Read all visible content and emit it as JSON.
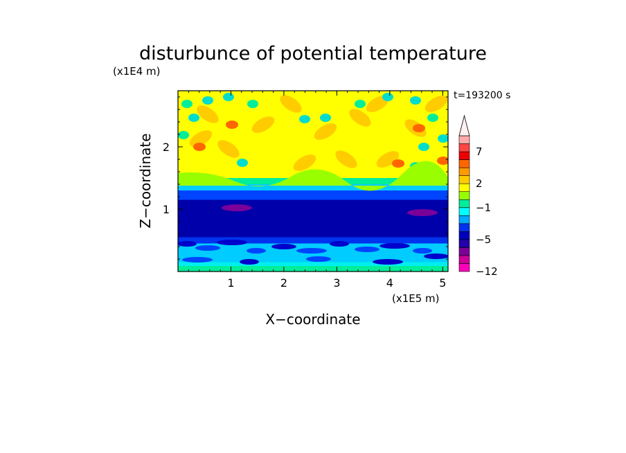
{
  "chart_data": {
    "type": "heatmap",
    "title": "disturbunce of potential temperature",
    "time_label": "t=193200 s",
    "xlabel": "X−coordinate",
    "ylabel": "Z−coordinate",
    "x_unit": "(x1E5 m)",
    "y_unit": "(x1E4 m)",
    "xlim": [
      0,
      5.1
    ],
    "ylim": [
      0,
      2.9
    ],
    "x_ticks": [
      {
        "value": 1,
        "label": "1"
      },
      {
        "value": 2,
        "label": "2"
      },
      {
        "value": 3,
        "label": "3"
      },
      {
        "value": 4,
        "label": "4"
      },
      {
        "value": 5,
        "label": "5"
      }
    ],
    "y_ticks": [
      {
        "value": 1,
        "label": "1"
      },
      {
        "value": 2,
        "label": "2"
      }
    ],
    "colorbar": {
      "extend": "max",
      "colors": [
        "#ff00bb",
        "#cc0099",
        "#7a0099",
        "#2200aa",
        "#0000bb",
        "#0033ee",
        "#00aaff",
        "#00ffff",
        "#00ee99",
        "#99ff00",
        "#ffff00",
        "#ffcc00",
        "#ff9900",
        "#ff6600",
        "#ee0000",
        "#ff4444",
        "#ffaaaa"
      ],
      "labels": [
        {
          "index": 0,
          "label": "−12"
        },
        {
          "index": 4,
          "label": "−5"
        },
        {
          "index": 8,
          "label": "−1"
        },
        {
          "index": 11,
          "label": "2"
        },
        {
          "index": 15,
          "label": "7"
        }
      ],
      "arrow_color": "#fff0f0"
    },
    "bands": [
      {
        "z": [
          0.0,
          0.15
        ],
        "value": -1,
        "color": "#00eeee"
      },
      {
        "z": [
          0.15,
          0.45
        ],
        "value": -2,
        "color": "#00ccff"
      },
      {
        "z": [
          0.45,
          0.55
        ],
        "value": -4,
        "color": "#0033ee"
      },
      {
        "z": [
          0.55,
          1.15
        ],
        "value": -5,
        "color": "#0000aa"
      },
      {
        "z": [
          1.15,
          1.3
        ],
        "value": -3,
        "color": "#0044ff"
      },
      {
        "z": [
          1.3,
          1.4
        ],
        "value": -1,
        "color": "#00ccff"
      },
      {
        "z": [
          1.4,
          1.5
        ],
        "value": 0,
        "color": "#00ee99"
      },
      {
        "z": [
          1.5,
          2.9
        ],
        "value": 1,
        "color": "#ffff00"
      }
    ]
  }
}
